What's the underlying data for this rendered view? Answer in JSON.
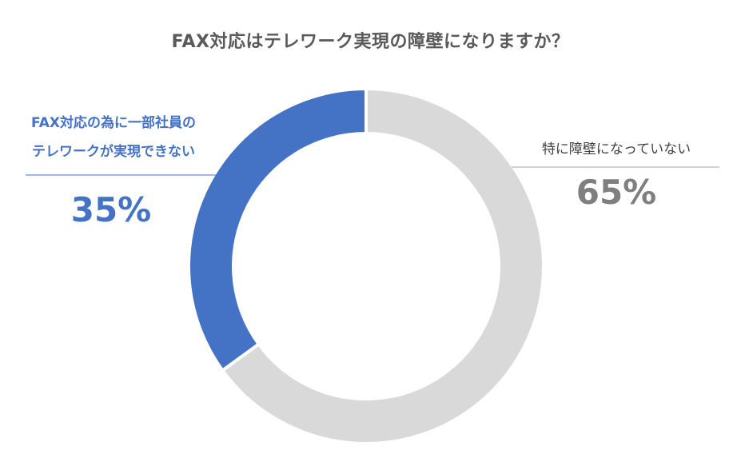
{
  "title": "FAX対応はテレワーク実現の障壁になりますか？",
  "chart_data": {
    "type": "pie",
    "style": "donut",
    "slices": [
      {
        "label_lines": [
          "FAX対応の為に一部社員の",
          "テレワークが実現できない"
        ],
        "value": 35,
        "value_label": "35%",
        "color": "#4472c4"
      },
      {
        "label_lines": [
          "特に障壁になっていない"
        ],
        "value": 65,
        "value_label": "65%",
        "color": "#d9d9d9"
      }
    ]
  }
}
